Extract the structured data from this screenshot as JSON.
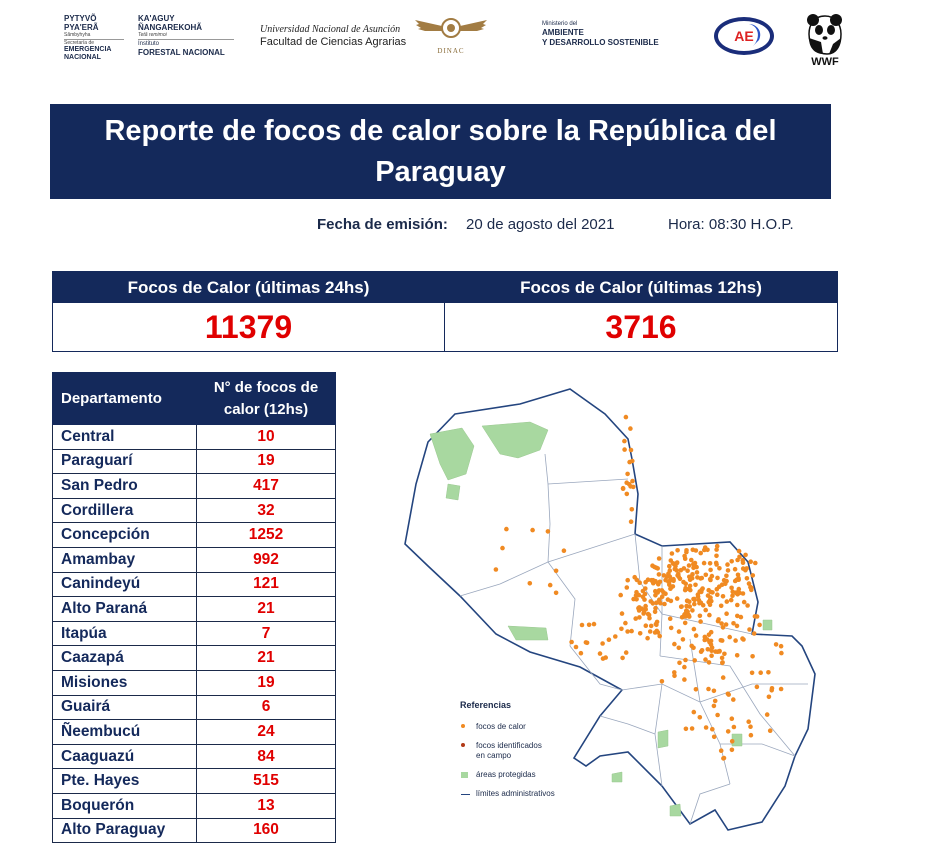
{
  "logos": {
    "sen": {
      "line1": "PYTYVÕ",
      "line2": "PYA'ERÃ",
      "line3": "Sãmbyhyha",
      "line4": "Secretaría de",
      "line5": "EMERGENCIA",
      "line6": "NACIONAL"
    },
    "infona": {
      "line1": "KA'AGUY",
      "line2": "ÑANGAREKOHÃ",
      "line3": "Tetã remimoi",
      "line4": "Instituto",
      "line5": "FORESTAL NACIONAL"
    },
    "una": {
      "line1": "Universidad Nacional de Asunción",
      "line2": "Facultad de Ciencias Agrarias"
    },
    "dinac": {
      "label": "DINAC"
    },
    "mades": {
      "line1": "Ministerio del",
      "line2": "AMBIENTE",
      "line3": "Y DESARROLLO SOSTENIBLE"
    },
    "aep": {
      "label": "AE"
    },
    "wwf": {
      "label": "WWF"
    }
  },
  "title": "Reporte de focos de calor sobre la República del Paraguay",
  "emission": {
    "label": "Fecha de emisión:",
    "date": "20 de agosto del 2021",
    "hora": "Hora: 08:30  H.O.P."
  },
  "counts": {
    "h24_label": "Focos de Calor (últimas 24hs)",
    "h24_value": "11379",
    "h12_label": "Focos de Calor (últimas 12hs)",
    "h12_value": "3716"
  },
  "table": {
    "col1": "Departamento",
    "col2": "N° de focos de calor (12hs)",
    "rows": [
      {
        "name": "Central",
        "value": "10"
      },
      {
        "name": "Paraguarí",
        "value": "19"
      },
      {
        "name": "San Pedro",
        "value": "417"
      },
      {
        "name": "Cordillera",
        "value": "32"
      },
      {
        "name": "Concepción",
        "value": "1252"
      },
      {
        "name": "Amambay",
        "value": "992"
      },
      {
        "name": "Canindeyú",
        "value": "121"
      },
      {
        "name": "Alto Paraná",
        "value": "21"
      },
      {
        "name": "Itapúa",
        "value": "7"
      },
      {
        "name": "Caazapá",
        "value": "21"
      },
      {
        "name": "Misiones",
        "value": "19"
      },
      {
        "name": "Guairá",
        "value": "6"
      },
      {
        "name": "Ñeembucú",
        "value": "24"
      },
      {
        "name": "Caaguazú",
        "value": "84"
      },
      {
        "name": "Pte. Hayes",
        "value": "515"
      },
      {
        "name": "Boquerón",
        "value": "13"
      },
      {
        "name": "Alto Paraguay",
        "value": "160"
      }
    ]
  },
  "legend": {
    "title": "Referencias",
    "items": {
      "focos": "focos de calor",
      "campo_line1": "focos identificados",
      "campo_line2": "en campo",
      "areas": "áreas protegidas",
      "limites": "límites administrativos"
    }
  },
  "colors": {
    "navy": "#14295b",
    "red": "#e00000",
    "hotspot": "#f08a22",
    "protected": "#a8d8a0",
    "border": "#24457f"
  }
}
